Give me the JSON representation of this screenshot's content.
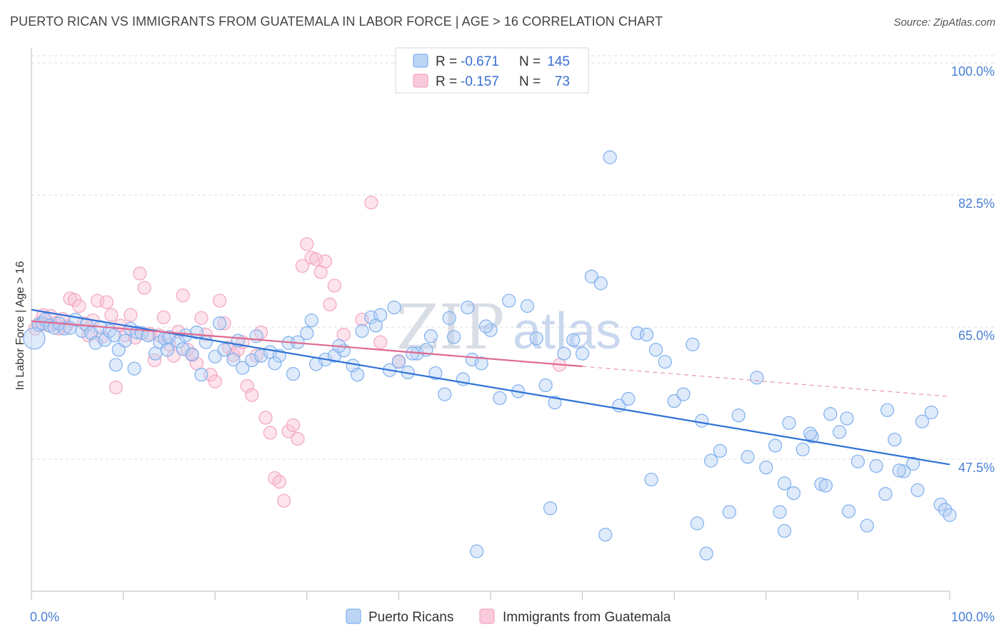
{
  "title": "PUERTO RICAN VS IMMIGRANTS FROM GUATEMALA IN LABOR FORCE | AGE > 16 CORRELATION CHART",
  "source": "Source: ZipAtlas.com",
  "watermark": {
    "zip": "ZIP",
    "atlas": "atlas"
  },
  "chart_data": {
    "type": "scatter",
    "title": "PUERTO RICAN VS IMMIGRANTS FROM GUATEMALA IN LABOR FORCE | AGE > 16 CORRELATION CHART",
    "xlabel": "",
    "ylabel": "In Labor Force | Age > 16",
    "xlim": [
      0,
      100
    ],
    "ylim": [
      30,
      102
    ],
    "x_tick_labels": [
      "0.0%",
      "100.0%"
    ],
    "y_ticks": [
      47.5,
      65.0,
      82.5,
      100.0
    ],
    "y_tick_labels": [
      "47.5%",
      "65.0%",
      "82.5%",
      "100.0%"
    ],
    "grid": "horizontal dashed",
    "legend_position": "top-center",
    "legend": [
      {
        "r_label": "R =",
        "r": "-0.671",
        "n_label": "N =",
        "n": "145"
      },
      {
        "r_label": "R =",
        "r": "-0.157",
        "n_label": "N =",
        "n": "73"
      }
    ],
    "series": [
      {
        "name": "Puerto Ricans",
        "color": "#7eb0ee",
        "line_color": "#2f72d6",
        "trend": {
          "x0": 0,
          "y0": 67.3,
          "x1": 100,
          "y1": 46.8
        },
        "points": [
          [
            0.3,
            63.5
          ],
          [
            0.8,
            65.3
          ],
          [
            1.2,
            65.5
          ],
          [
            1.5,
            66.0
          ],
          [
            2.0,
            65.2
          ],
          [
            2.5,
            64.9
          ],
          [
            3.0,
            65.5
          ],
          [
            3.6,
            64.8
          ],
          [
            4.2,
            64.9
          ],
          [
            4.8,
            66.0
          ],
          [
            5.5,
            64.5
          ],
          [
            6.0,
            65.3
          ],
          [
            6.5,
            64.2
          ],
          [
            7.0,
            62.9
          ],
          [
            7.5,
            65.0
          ],
          [
            8.0,
            63.3
          ],
          [
            8.5,
            64.5
          ],
          [
            9.0,
            63.9
          ],
          [
            9.5,
            62.0
          ],
          [
            10.2,
            63.2
          ],
          [
            10.8,
            64.8
          ],
          [
            11.5,
            64.3
          ],
          [
            12.0,
            64.2
          ],
          [
            12.7,
            63.9
          ],
          [
            13.5,
            61.5
          ],
          [
            14.0,
            63.0
          ],
          [
            14.5,
            63.5
          ],
          [
            15.0,
            63.7
          ],
          [
            16.0,
            63.1
          ],
          [
            16.5,
            62.1
          ],
          [
            17.5,
            61.4
          ],
          [
            18.0,
            64.3
          ],
          [
            19.0,
            63.0
          ],
          [
            20.0,
            61.1
          ],
          [
            21.0,
            62.0
          ],
          [
            22.0,
            60.7
          ],
          [
            23.0,
            59.6
          ],
          [
            24.0,
            60.6
          ],
          [
            25.0,
            61.2
          ],
          [
            26.0,
            61.7
          ],
          [
            27.0,
            61.2
          ],
          [
            28.0,
            62.9
          ],
          [
            29.0,
            63.0
          ],
          [
            30.0,
            64.2
          ],
          [
            31.0,
            60.1
          ],
          [
            32.0,
            60.7
          ],
          [
            33.0,
            61.2
          ],
          [
            34.0,
            61.9
          ],
          [
            35.0,
            59.9
          ],
          [
            36.0,
            64.5
          ],
          [
            37.0,
            66.3
          ],
          [
            38.0,
            66.6
          ],
          [
            39.0,
            59.3
          ],
          [
            40.0,
            60.4
          ],
          [
            41.0,
            59.0
          ],
          [
            42.0,
            61.5
          ],
          [
            43.0,
            62.0
          ],
          [
            44.0,
            58.9
          ],
          [
            45.0,
            56.1
          ],
          [
            46.0,
            63.7
          ],
          [
            47.0,
            58.1
          ],
          [
            48.0,
            60.7
          ],
          [
            49.0,
            60.2
          ],
          [
            50.0,
            64.6
          ],
          [
            9.2,
            60.0
          ],
          [
            11.2,
            59.5
          ],
          [
            14.8,
            62.0
          ],
          [
            16.8,
            63.9
          ],
          [
            18.5,
            58.7
          ],
          [
            20.5,
            65.5
          ],
          [
            22.5,
            63.2
          ],
          [
            24.5,
            63.8
          ],
          [
            26.5,
            60.2
          ],
          [
            28.5,
            58.8
          ],
          [
            30.5,
            65.9
          ],
          [
            33.5,
            62.5
          ],
          [
            35.5,
            58.7
          ],
          [
            37.5,
            65.2
          ],
          [
            39.5,
            67.6
          ],
          [
            41.5,
            61.5
          ],
          [
            43.5,
            63.8
          ],
          [
            45.5,
            66.2
          ],
          [
            47.5,
            67.6
          ],
          [
            49.5,
            65.1
          ],
          [
            51.0,
            55.6
          ],
          [
            52.0,
            68.5
          ],
          [
            53.0,
            56.5
          ],
          [
            54.0,
            67.8
          ],
          [
            55.0,
            63.5
          ],
          [
            56.0,
            57.3
          ],
          [
            57.0,
            55.0
          ],
          [
            58.0,
            61.5
          ],
          [
            59.0,
            63.3
          ],
          [
            60.0,
            61.5
          ],
          [
            61.0,
            71.7
          ],
          [
            62.0,
            70.8
          ],
          [
            63.0,
            87.5
          ],
          [
            64.0,
            54.6
          ],
          [
            65.0,
            55.5
          ],
          [
            66.0,
            64.2
          ],
          [
            67.0,
            64.0
          ],
          [
            68.0,
            62.0
          ],
          [
            69.0,
            60.4
          ],
          [
            70.0,
            55.2
          ],
          [
            71.0,
            56.1
          ],
          [
            72.0,
            62.7
          ],
          [
            73.0,
            52.6
          ],
          [
            74.0,
            47.3
          ],
          [
            75.0,
            48.6
          ],
          [
            76.0,
            40.5
          ],
          [
            77.0,
            53.3
          ],
          [
            78.0,
            47.8
          ],
          [
            79.0,
            58.3
          ],
          [
            80.0,
            46.4
          ],
          [
            81.0,
            49.3
          ],
          [
            82.0,
            44.3
          ],
          [
            83.0,
            43.0
          ],
          [
            84.0,
            48.8
          ],
          [
            85.0,
            50.5
          ],
          [
            86.0,
            44.2
          ],
          [
            87.0,
            53.5
          ],
          [
            88.0,
            51.1
          ],
          [
            89.0,
            40.6
          ],
          [
            90.0,
            47.2
          ],
          [
            91.0,
            38.7
          ],
          [
            92.0,
            46.6
          ],
          [
            93.0,
            42.9
          ],
          [
            94.0,
            50.1
          ],
          [
            95.0,
            45.9
          ],
          [
            96.0,
            46.9
          ],
          [
            97.0,
            52.5
          ],
          [
            98.0,
            53.7
          ],
          [
            99.0,
            41.5
          ],
          [
            99.5,
            40.8
          ],
          [
            100.0,
            40.1
          ],
          [
            82.5,
            52.3
          ],
          [
            84.8,
            50.9
          ],
          [
            88.8,
            52.9
          ],
          [
            93.2,
            54.0
          ],
          [
            96.5,
            43.4
          ],
          [
            48.5,
            35.3
          ],
          [
            56.5,
            41.0
          ],
          [
            67.5,
            44.8
          ],
          [
            72.5,
            39.0
          ],
          [
            82.0,
            38.0
          ],
          [
            86.5,
            44.0
          ],
          [
            94.5,
            46.0
          ],
          [
            73.5,
            35.0
          ],
          [
            62.5,
            37.5
          ],
          [
            81.5,
            40.5
          ]
        ]
      },
      {
        "name": "Immigrants from Guatemala",
        "color": "#f3a5c1",
        "line_color": "#e0698f",
        "trend": {
          "x0": 0,
          "y0": 65.8,
          "x1": 60,
          "y1": 59.8
        },
        "trend_dashed": {
          "x0": 60,
          "y0": 59.8,
          "x1": 100,
          "y1": 55.8
        },
        "points": [
          [
            0.4,
            64.8
          ],
          [
            0.9,
            65.6
          ],
          [
            1.3,
            66.6
          ],
          [
            1.7,
            65.3
          ],
          [
            2.1,
            66.5
          ],
          [
            2.6,
            65.5
          ],
          [
            3.0,
            64.8
          ],
          [
            3.4,
            66.1
          ],
          [
            3.8,
            65.1
          ],
          [
            4.2,
            68.8
          ],
          [
            4.7,
            68.6
          ],
          [
            5.2,
            67.8
          ],
          [
            5.7,
            65.5
          ],
          [
            6.2,
            63.9
          ],
          [
            6.7,
            65.9
          ],
          [
            7.2,
            68.5
          ],
          [
            7.7,
            63.7
          ],
          [
            8.2,
            68.3
          ],
          [
            8.7,
            66.6
          ],
          [
            9.2,
            57.0
          ],
          [
            9.7,
            65.2
          ],
          [
            10.2,
            63.9
          ],
          [
            10.8,
            66.6
          ],
          [
            11.3,
            63.6
          ],
          [
            11.8,
            72.1
          ],
          [
            12.3,
            70.2
          ],
          [
            12.9,
            64.1
          ],
          [
            13.4,
            60.6
          ],
          [
            13.9,
            63.9
          ],
          [
            14.4,
            66.3
          ],
          [
            15.0,
            62.7
          ],
          [
            15.5,
            61.2
          ],
          [
            16.0,
            64.4
          ],
          [
            16.5,
            69.2
          ],
          [
            17.0,
            62.0
          ],
          [
            17.5,
            61.3
          ],
          [
            18.0,
            60.2
          ],
          [
            18.5,
            66.2
          ],
          [
            19.0,
            64.0
          ],
          [
            19.5,
            58.7
          ],
          [
            20.0,
            57.8
          ],
          [
            20.5,
            68.5
          ],
          [
            21.0,
            65.5
          ],
          [
            21.5,
            62.3
          ],
          [
            22.0,
            61.3
          ],
          [
            22.5,
            62.0
          ],
          [
            23.0,
            63.0
          ],
          [
            23.5,
            57.2
          ],
          [
            24.0,
            56.0
          ],
          [
            24.5,
            61.2
          ],
          [
            25.0,
            64.3
          ],
          [
            25.5,
            53.0
          ],
          [
            26.0,
            51.0
          ],
          [
            26.5,
            45.0
          ],
          [
            27.0,
            44.5
          ],
          [
            27.5,
            42.0
          ],
          [
            28.0,
            51.2
          ],
          [
            28.5,
            52.0
          ],
          [
            29.0,
            50.2
          ],
          [
            29.5,
            73.1
          ],
          [
            30.0,
            76.0
          ],
          [
            30.5,
            74.2
          ],
          [
            31.0,
            74.0
          ],
          [
            31.5,
            72.3
          ],
          [
            32.0,
            73.7
          ],
          [
            32.5,
            68.0
          ],
          [
            33.0,
            70.5
          ],
          [
            34.0,
            64.0
          ],
          [
            36.0,
            66.0
          ],
          [
            38.0,
            63.0
          ],
          [
            40.0,
            60.5
          ],
          [
            57.5,
            60.0
          ],
          [
            37.0,
            81.5
          ]
        ]
      }
    ]
  },
  "bottom_legend": [
    "Puerto Ricans",
    "Immigrants from Guatemala"
  ]
}
